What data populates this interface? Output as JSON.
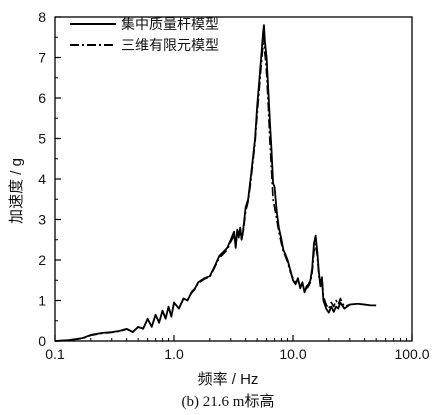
{
  "chart_data": {
    "type": "line",
    "caption": "(b) 21.6 m标高",
    "title": "",
    "xlabel": "频率 / Hz",
    "ylabel": "加速度 / g",
    "xscale": "log",
    "xlim": [
      0.1,
      100
    ],
    "ylim": [
      0,
      8
    ],
    "xticks": [
      0.1,
      1,
      10,
      100
    ],
    "xtick_labels": [
      "0.1",
      "1.0",
      "10.0",
      "100.0"
    ],
    "yticks": [
      0,
      1,
      2,
      3,
      4,
      5,
      6,
      7,
      8
    ],
    "ytick_labels": [
      "0",
      "1",
      "2",
      "3",
      "4",
      "5",
      "6",
      "7",
      "8"
    ],
    "grid": false,
    "legend_position": "top-left",
    "series": [
      {
        "name": "集中质量杆模型",
        "style": "solid",
        "color": "#000000",
        "x": [
          0.1,
          0.13,
          0.17,
          0.2,
          0.25,
          0.3,
          0.35,
          0.4,
          0.45,
          0.5,
          0.55,
          0.6,
          0.65,
          0.7,
          0.75,
          0.8,
          0.85,
          0.9,
          0.95,
          1.0,
          1.1,
          1.2,
          1.3,
          1.4,
          1.5,
          1.6,
          1.8,
          2.0,
          2.2,
          2.4,
          2.6,
          2.8,
          3.0,
          3.2,
          3.3,
          3.4,
          3.5,
          3.6,
          3.7,
          3.8,
          4.0,
          4.2,
          4.4,
          4.6,
          4.8,
          5.0,
          5.2,
          5.4,
          5.6,
          5.7,
          5.8,
          5.9,
          6.0,
          6.2,
          6.4,
          6.6,
          6.8,
          7.0,
          7.3,
          7.6,
          8.0,
          8.3,
          8.6,
          9.0,
          9.5,
          10.0,
          10.5,
          11.0,
          11.5,
          12.0,
          12.5,
          13.0,
          13.5,
          14.0,
          14.5,
          15.0,
          15.5,
          16.0,
          16.5,
          17.0,
          17.5,
          18.0,
          19.0,
          20.0,
          21.0,
          22.0,
          23.0,
          24.0,
          25.0,
          27.0,
          30.0,
          35.0,
          40.0,
          45.0,
          50.0
        ],
        "y": [
          0.0,
          0.02,
          0.07,
          0.15,
          0.2,
          0.22,
          0.25,
          0.3,
          0.22,
          0.35,
          0.3,
          0.55,
          0.35,
          0.65,
          0.45,
          0.75,
          0.55,
          0.85,
          0.6,
          0.95,
          0.8,
          1.05,
          1.0,
          1.2,
          1.3,
          1.45,
          1.55,
          1.6,
          1.85,
          2.1,
          2.2,
          2.3,
          2.5,
          2.7,
          2.3,
          2.75,
          2.6,
          2.8,
          2.5,
          2.7,
          3.3,
          3.5,
          4.0,
          4.5,
          5.0,
          5.8,
          6.4,
          7.0,
          7.6,
          7.8,
          7.4,
          7.2,
          7.0,
          6.2,
          5.4,
          4.7,
          3.9,
          3.8,
          3.2,
          2.8,
          2.5,
          2.25,
          2.15,
          2.0,
          1.75,
          1.5,
          1.4,
          1.55,
          1.3,
          1.45,
          1.2,
          1.35,
          1.4,
          1.5,
          1.8,
          2.4,
          2.6,
          2.2,
          1.7,
          1.35,
          1.55,
          1.0,
          0.8,
          0.7,
          0.85,
          0.72,
          0.85,
          0.8,
          0.95,
          0.8,
          0.9,
          0.92,
          0.9,
          0.88,
          0.88
        ]
      },
      {
        "name": "三维有限元模型",
        "style": "dashdot",
        "color": "#000000",
        "x": [
          0.1,
          0.13,
          0.17,
          0.2,
          0.25,
          0.3,
          0.35,
          0.4,
          0.45,
          0.5,
          0.55,
          0.6,
          0.65,
          0.7,
          0.75,
          0.8,
          0.85,
          0.9,
          0.95,
          1.0,
          1.1,
          1.2,
          1.3,
          1.4,
          1.5,
          1.6,
          1.8,
          2.0,
          2.2,
          2.4,
          2.6,
          2.8,
          3.0,
          3.2,
          3.3,
          3.4,
          3.5,
          3.6,
          3.7,
          3.8,
          4.0,
          4.2,
          4.4,
          4.6,
          4.8,
          5.0,
          5.2,
          5.4,
          5.6,
          5.7,
          5.8,
          5.9,
          6.0,
          6.2,
          6.4,
          6.6,
          6.8,
          7.0,
          7.3,
          7.6,
          8.0,
          8.3,
          8.6,
          9.0,
          9.5,
          10.0,
          10.5,
          11.0,
          11.5,
          12.0,
          12.5,
          13.0,
          13.5,
          14.0,
          14.5,
          15.0,
          15.5,
          16.0,
          16.5,
          17.0,
          17.5,
          18.0,
          19.0,
          20.0,
          21.0,
          22.0,
          23.0,
          24.0,
          25.0,
          27.0,
          30.0
        ],
        "y": [
          0.0,
          0.02,
          0.06,
          0.14,
          0.19,
          0.21,
          0.24,
          0.29,
          0.23,
          0.34,
          0.31,
          0.53,
          0.37,
          0.63,
          0.47,
          0.73,
          0.57,
          0.83,
          0.62,
          0.93,
          0.82,
          1.03,
          1.02,
          1.18,
          1.28,
          1.43,
          1.53,
          1.58,
          1.82,
          2.05,
          2.15,
          2.25,
          2.45,
          2.6,
          2.35,
          2.7,
          2.55,
          2.75,
          2.55,
          2.65,
          3.2,
          3.45,
          3.9,
          4.4,
          4.9,
          5.6,
          6.2,
          6.8,
          7.3,
          7.5,
          7.1,
          6.9,
          6.6,
          5.8,
          4.9,
          4.2,
          3.5,
          3.3,
          3.0,
          2.7,
          2.4,
          2.2,
          2.1,
          1.95,
          1.7,
          1.55,
          1.45,
          1.5,
          1.35,
          1.4,
          1.25,
          1.3,
          1.35,
          1.45,
          1.7,
          2.2,
          2.4,
          2.1,
          1.6,
          1.4,
          1.6,
          1.1,
          0.9,
          0.8,
          0.95,
          0.85,
          1.0,
          0.9,
          1.05,
          0.85,
          0.9
        ]
      }
    ]
  }
}
